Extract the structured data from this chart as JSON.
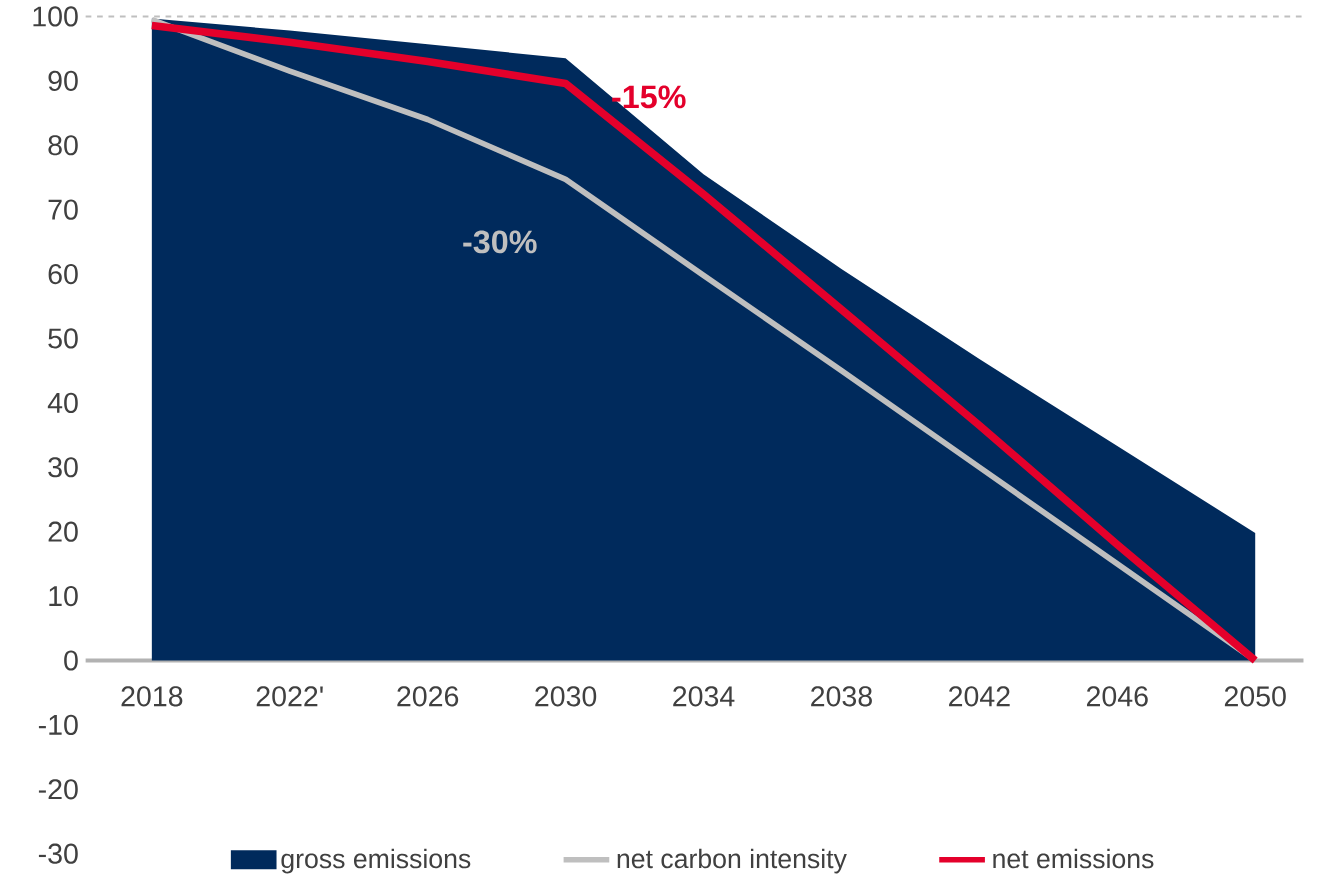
{
  "chart_data": {
    "type": "area",
    "categories": [
      "2018",
      "2022'",
      "2026",
      "2030",
      "2034",
      "2038",
      "2042",
      "2046",
      "2050"
    ],
    "series": [
      {
        "name": "gross emissions",
        "color": "#002a5c",
        "values": [
          99.7,
          97.8,
          95.7,
          93.5,
          75.5,
          60.8,
          46.8,
          33.3,
          19.8
        ]
      },
      {
        "name": "net carbon intensity",
        "type": "line",
        "color": "#bfbfbf",
        "values": [
          99.5,
          91.5,
          84,
          74.7,
          59.8,
          45,
          30,
          15,
          0
        ]
      },
      {
        "name": "net emissions",
        "type": "line",
        "color": "#e4002b",
        "values": [
          98.6,
          96,
          93,
          89.6,
          72.4,
          54.5,
          36.5,
          18,
          0
        ]
      }
    ],
    "ylim": [
      -30,
      100
    ],
    "yticks": [
      -30,
      -20,
      -10,
      0,
      10,
      20,
      30,
      40,
      50,
      60,
      70,
      80,
      90,
      100
    ],
    "ref_lines": [
      {
        "axis": "y",
        "value": 100,
        "color": "#bfbfbf",
        "line_style": "dashed"
      }
    ],
    "annotations": [
      "-30%",
      "-15%"
    ],
    "legend": "bottom",
    "grid": false
  }
}
